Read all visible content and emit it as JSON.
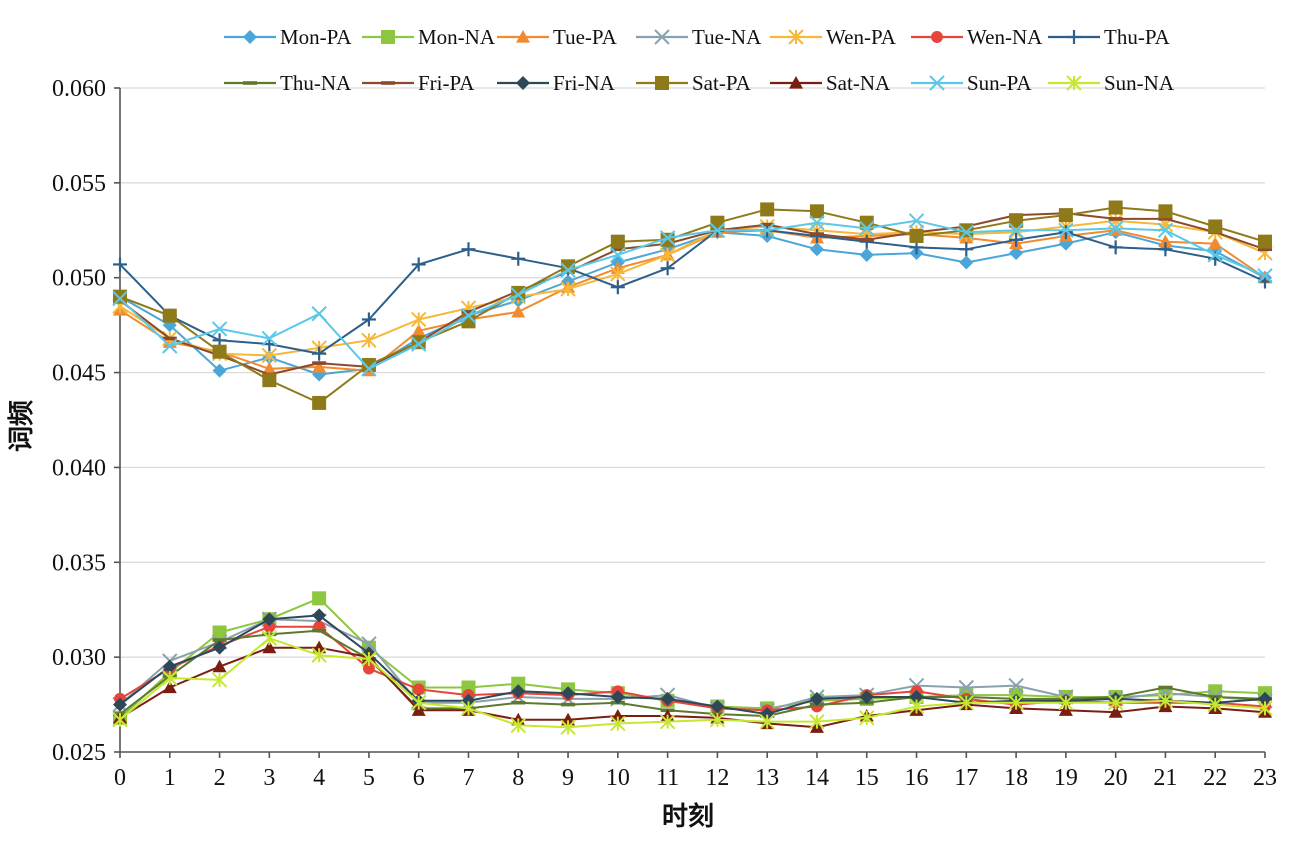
{
  "chart_data": {
    "type": "line",
    "title": "",
    "xlabel": "时刻",
    "ylabel": "词频",
    "ylim": [
      0.025,
      0.06
    ],
    "yticks": [
      "0.025",
      "0.030",
      "0.035",
      "0.040",
      "0.045",
      "0.050",
      "0.055",
      "0.060"
    ],
    "ytick_values": [
      0.025,
      0.03,
      0.035,
      0.04,
      0.045,
      0.05,
      0.055,
      0.06
    ],
    "x": [
      0,
      1,
      2,
      3,
      4,
      5,
      6,
      7,
      8,
      9,
      10,
      11,
      12,
      13,
      14,
      15,
      16,
      17,
      18,
      19,
      20,
      21,
      22,
      23
    ],
    "grid": true,
    "legend_position": "top",
    "series": [
      {
        "name": "Mon-PA",
        "color": "#4BA6D8",
        "marker": "diamond",
        "values": [
          0.049,
          0.0475,
          0.0451,
          0.0458,
          0.0449,
          0.0452,
          0.0468,
          0.048,
          0.0488,
          0.0498,
          0.0508,
          0.0515,
          0.0524,
          0.0522,
          0.0515,
          0.0512,
          0.0513,
          0.0508,
          0.0513,
          0.0518,
          0.0524,
          0.0517,
          0.0514,
          0.05
        ]
      },
      {
        "name": "Mon-NA",
        "color": "#8DC63F",
        "marker": "square",
        "values": [
          0.0268,
          0.0292,
          0.0313,
          0.032,
          0.0331,
          0.0305,
          0.0284,
          0.0284,
          0.0286,
          0.0283,
          0.0281,
          0.0277,
          0.0274,
          0.0273,
          0.0277,
          0.0278,
          0.0279,
          0.028,
          0.028,
          0.0279,
          0.0279,
          0.028,
          0.0282,
          0.0281
        ]
      },
      {
        "name": "Tue-PA",
        "color": "#F28A30",
        "marker": "triangle",
        "values": [
          0.0483,
          0.0466,
          0.0461,
          0.0452,
          0.0453,
          0.0451,
          0.0472,
          0.0478,
          0.0482,
          0.0495,
          0.0505,
          0.0512,
          0.0524,
          0.0525,
          0.0521,
          0.0522,
          0.0523,
          0.0521,
          0.0518,
          0.0522,
          0.0525,
          0.0519,
          0.0518,
          0.05
        ]
      },
      {
        "name": "Tue-NA",
        "color": "#8AA1AE",
        "marker": "x",
        "values": [
          0.0275,
          0.0298,
          0.0308,
          0.032,
          0.0319,
          0.0307,
          0.0276,
          0.0276,
          0.0279,
          0.0278,
          0.0278,
          0.028,
          0.0273,
          0.0272,
          0.0279,
          0.028,
          0.0285,
          0.0284,
          0.0285,
          0.0279,
          0.0278,
          0.0281,
          0.0279,
          0.0277
        ]
      },
      {
        "name": "Wen-PA",
        "color": "#F5B83B",
        "marker": "star",
        "values": [
          0.0485,
          0.0468,
          0.046,
          0.0459,
          0.0463,
          0.0467,
          0.0478,
          0.0484,
          0.049,
          0.0494,
          0.0502,
          0.0512,
          0.0525,
          0.0527,
          0.0525,
          0.0523,
          0.0524,
          0.0523,
          0.0524,
          0.0527,
          0.053,
          0.0528,
          0.0524,
          0.0513
        ]
      },
      {
        "name": "Wen-NA",
        "color": "#E8443A",
        "marker": "circle",
        "values": [
          0.0278,
          0.0294,
          0.0306,
          0.0316,
          0.0316,
          0.0294,
          0.0283,
          0.028,
          0.0281,
          0.028,
          0.0282,
          0.0277,
          0.0273,
          0.0272,
          0.0274,
          0.028,
          0.0282,
          0.0278,
          0.0275,
          0.0277,
          0.0276,
          0.0276,
          0.0276,
          0.0274
        ]
      },
      {
        "name": "Thu-PA",
        "color": "#2E5F8A",
        "marker": "plus",
        "values": [
          0.0507,
          0.048,
          0.0467,
          0.0465,
          0.046,
          0.0478,
          0.0507,
          0.0515,
          0.051,
          0.0505,
          0.0495,
          0.0505,
          0.0525,
          0.0525,
          0.0522,
          0.0519,
          0.0516,
          0.0515,
          0.052,
          0.0524,
          0.0516,
          0.0515,
          0.051,
          0.0498
        ]
      },
      {
        "name": "Thu-NA",
        "color": "#5C7A2E",
        "marker": "dash",
        "values": [
          0.027,
          0.029,
          0.0309,
          0.0312,
          0.0314,
          0.0299,
          0.0273,
          0.0273,
          0.0276,
          0.0275,
          0.0276,
          0.0272,
          0.027,
          0.0269,
          0.0275,
          0.0276,
          0.0279,
          0.0279,
          0.0278,
          0.0278,
          0.0279,
          0.0284,
          0.0279,
          0.0278
        ]
      },
      {
        "name": "Fri-PA",
        "color": "#8B4A2B",
        "marker": "dash",
        "values": [
          0.0488,
          0.0468,
          0.0459,
          0.0449,
          0.0455,
          0.0453,
          0.0466,
          0.0482,
          0.0493,
          0.0503,
          0.0515,
          0.0518,
          0.0525,
          0.0528,
          0.0523,
          0.052,
          0.0524,
          0.0527,
          0.0533,
          0.0534,
          0.0531,
          0.0531,
          0.0524,
          0.0515
        ]
      },
      {
        "name": "Fri-NA",
        "color": "#2F4858",
        "marker": "diamond",
        "values": [
          0.0275,
          0.0295,
          0.0305,
          0.032,
          0.0322,
          0.0302,
          0.0277,
          0.0277,
          0.0282,
          0.0281,
          0.0279,
          0.0278,
          0.0274,
          0.027,
          0.0278,
          0.0279,
          0.0279,
          0.0276,
          0.0277,
          0.0277,
          0.0278,
          0.0277,
          0.0276,
          0.0278
        ]
      },
      {
        "name": "Sat-PA",
        "color": "#8F7A1A",
        "marker": "square",
        "values": [
          0.049,
          0.048,
          0.0461,
          0.0446,
          0.0434,
          0.0454,
          0.0466,
          0.0477,
          0.0492,
          0.0506,
          0.0519,
          0.052,
          0.0529,
          0.0536,
          0.0535,
          0.0529,
          0.0522,
          0.0525,
          0.053,
          0.0533,
          0.0537,
          0.0535,
          0.0527,
          0.0519
        ]
      },
      {
        "name": "Sat-NA",
        "color": "#7A1E12",
        "marker": "triangle",
        "values": [
          0.0268,
          0.0284,
          0.0295,
          0.0305,
          0.0305,
          0.03,
          0.0272,
          0.0272,
          0.0267,
          0.0267,
          0.0269,
          0.0269,
          0.0268,
          0.0265,
          0.0263,
          0.0269,
          0.0272,
          0.0275,
          0.0273,
          0.0272,
          0.0271,
          0.0274,
          0.0273,
          0.0271
        ]
      },
      {
        "name": "Sun-PA",
        "color": "#5BC8E8",
        "marker": "x",
        "values": [
          0.0489,
          0.0464,
          0.0473,
          0.0468,
          0.0481,
          0.0452,
          0.0465,
          0.048,
          0.0491,
          0.0504,
          0.0512,
          0.0521,
          0.0525,
          0.0525,
          0.0529,
          0.0526,
          0.053,
          0.0524,
          0.0525,
          0.0525,
          0.0526,
          0.0525,
          0.0512,
          0.0501
        ]
      },
      {
        "name": "Sun-NA",
        "color": "#C5E830",
        "marker": "star",
        "values": [
          0.0267,
          0.0289,
          0.0288,
          0.031,
          0.0301,
          0.0299,
          0.0276,
          0.0273,
          0.0264,
          0.0263,
          0.0265,
          0.0266,
          0.0267,
          0.0266,
          0.0266,
          0.0268,
          0.0274,
          0.0276,
          0.0276,
          0.0276,
          0.0276,
          0.0277,
          0.0275,
          0.0273
        ]
      }
    ]
  }
}
